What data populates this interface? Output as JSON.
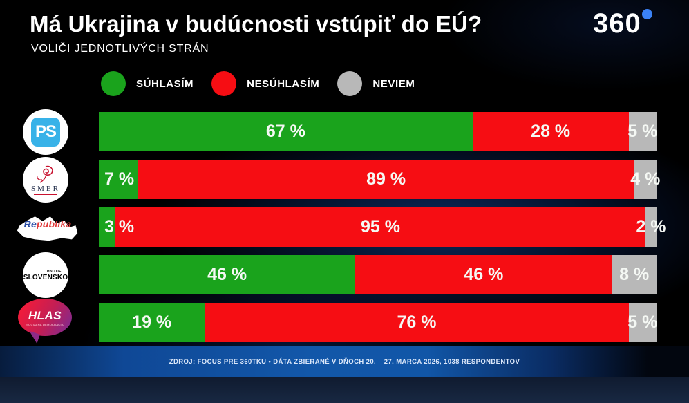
{
  "header": {
    "title": "Má Ukrajina v budúcnosti vstúpiť do EÚ?",
    "subtitle": "VOLIČI JEDNOTLIVÝCH STRÁN",
    "brand": "360"
  },
  "colors": {
    "agree_green": "#1aa31c",
    "disagree_red": "#f60d13",
    "unknown_gray": "#b8b8b8",
    "brand_blue": "#3b82f6"
  },
  "legend": [
    {
      "label": "SÚHLASÍM",
      "color": "#1aa31c"
    },
    {
      "label": "NESÚHLASÍM",
      "color": "#f60d13"
    },
    {
      "label": "NEVIEM",
      "color": "#b8b8b8"
    }
  ],
  "parties": [
    {
      "id": "ps",
      "label": "PS"
    },
    {
      "id": "smer",
      "label": "SMER"
    },
    {
      "id": "republika",
      "label_re": "Re",
      "label_rest": "publika"
    },
    {
      "id": "slovensko",
      "label_small": "HNUTIE",
      "label": "SLOVENSKO"
    },
    {
      "id": "hlas",
      "label": "HLAS",
      "label_small": "SOCIÁLNA DEMOKRACIA"
    }
  ],
  "chart_data": {
    "type": "bar",
    "orientation": "horizontal-stacked",
    "title": "Má Ukrajina v budúcnosti vstúpiť do EÚ?",
    "subtitle": "VOLIČI JEDNOTLIVÝCH STRÁN",
    "categories": [
      "PS",
      "SMER",
      "REPUBLIKA",
      "HNUTIE SLOVENSKO",
      "HLAS"
    ],
    "series": [
      {
        "name": "SÚHLASÍM",
        "color": "#1aa31c",
        "values": [
          67,
          7,
          3,
          46,
          19
        ]
      },
      {
        "name": "NESÚHLASÍM",
        "color": "#f60d13",
        "values": [
          28,
          89,
          95,
          46,
          76
        ]
      },
      {
        "name": "NEVIEM",
        "color": "#b8b8b8",
        "values": [
          5,
          4,
          2,
          8,
          5
        ]
      }
    ],
    "value_suffix": " %",
    "xlim": [
      0,
      100
    ],
    "legend_position": "top"
  },
  "footer": {
    "source": "ZDROJ: FOCUS PRE 360TKU • DÁTA ZBIERANÉ V DŇOCH 20. – 27. MARCA 2026, 1038 RESPONDENTOV"
  }
}
